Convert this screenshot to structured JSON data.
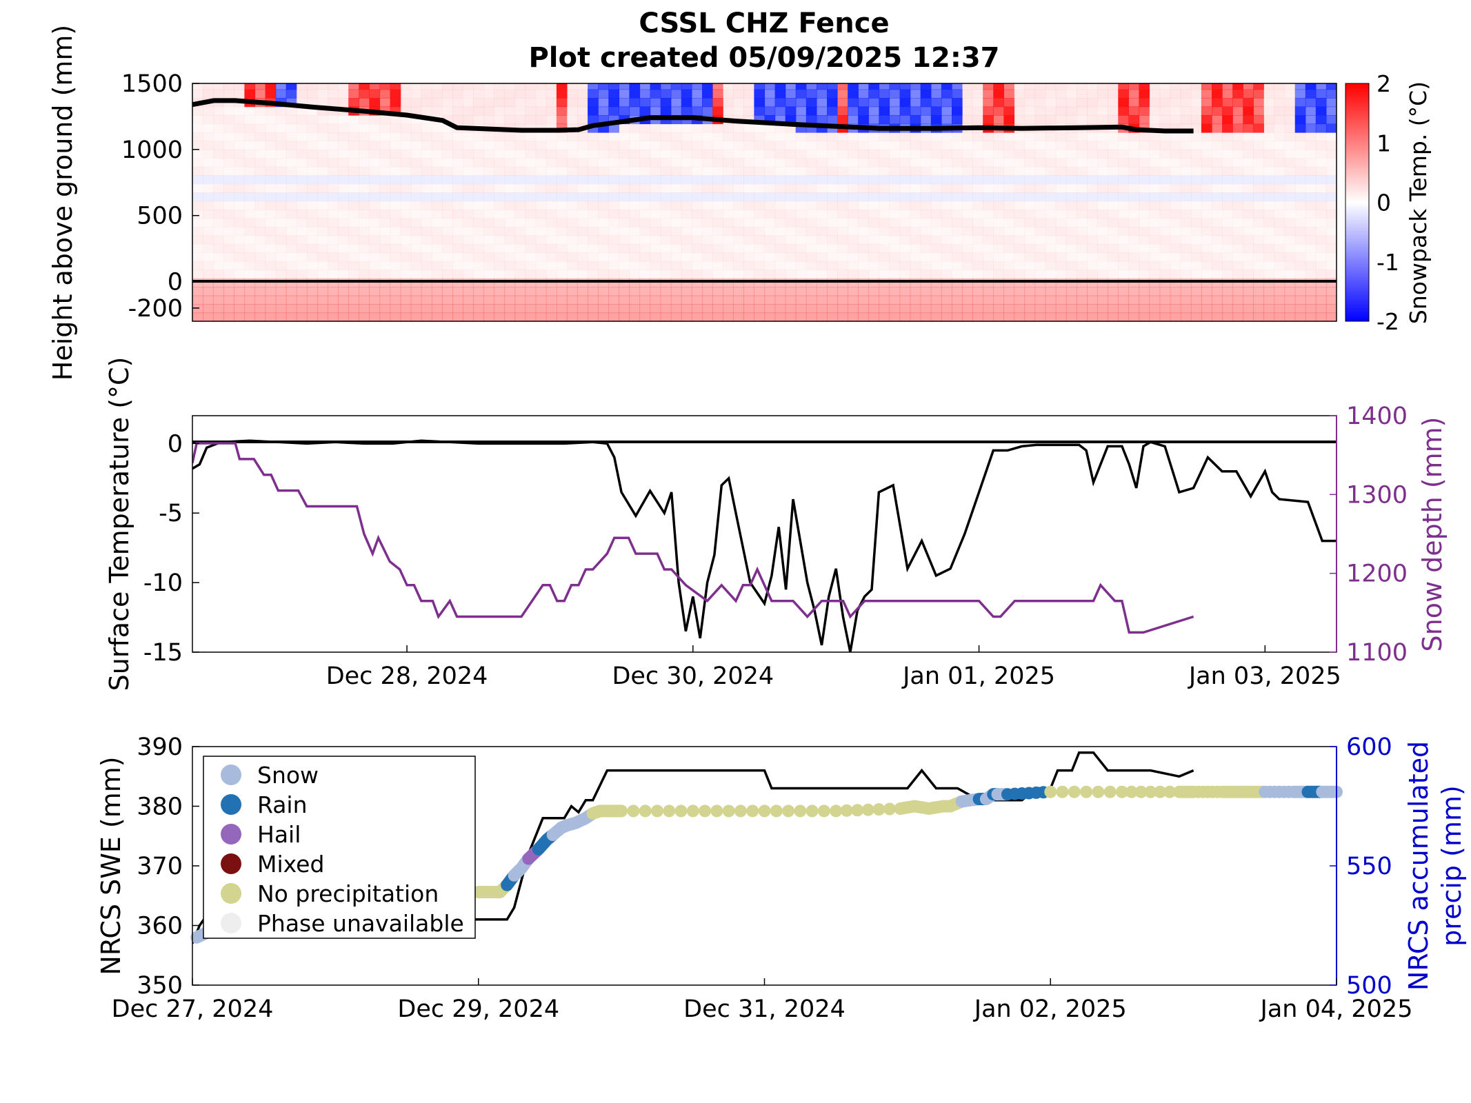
{
  "figure": {
    "title": "CSSL CHZ Fence",
    "subtitle": "Plot created 05/09/2025 12:37"
  },
  "chart_data": [
    {
      "type": "heatmap",
      "name": "snowpack-temperature-profile",
      "ylabel": "Height above ground (mm)",
      "ylim": [
        -300,
        1500
      ],
      "yticks": [
        "1500",
        "1000",
        "500",
        "0",
        "-200"
      ],
      "colorbar": {
        "label": "Snowpack Temp. (°C)",
        "range": [
          -2,
          2
        ],
        "ticks": [
          "2",
          "1",
          "0",
          "-1",
          "-2"
        ],
        "colors": [
          "#0000ff",
          "#ffffff",
          "#ff0000"
        ]
      },
      "xlim": [
        "Dec 26, 2024 12:00",
        "Jan 03, 2025 12:00"
      ],
      "snow_depth_line": {
        "t": [
          0,
          0.15,
          0.3,
          0.55,
          0.85,
          1.2,
          1.5,
          1.75,
          1.85,
          2.3,
          2.55,
          2.7,
          2.8,
          3.0,
          3.2,
          3.5,
          3.8,
          4.2,
          4.5,
          4.8,
          5.2,
          5.5,
          5.8,
          6.2,
          6.5,
          6.6,
          6.8,
          7.0
        ],
        "depth_mm": [
          1340,
          1370,
          1370,
          1350,
          1320,
          1290,
          1260,
          1220,
          1165,
          1145,
          1145,
          1150,
          1180,
          1210,
          1240,
          1240,
          1215,
          1190,
          1175,
          1160,
          1160,
          1165,
          1160,
          1165,
          1170,
          1150,
          1140,
          1140
        ]
      }
    },
    {
      "type": "line",
      "name": "surface-temperature-and-snow-depth",
      "ylabel": "Surface Temperature (°C)",
      "y2label": "Snow depth (mm)",
      "ylim": [
        -15,
        2
      ],
      "yticks": [
        "0",
        "-5",
        "-10",
        "-15"
      ],
      "y2lim": [
        1100,
        1400
      ],
      "y2ticks": [
        "1400",
        "1300",
        "1200",
        "1100"
      ],
      "xticks": [
        "Dec 28, 2024",
        "Dec 30, 2024",
        "Jan 01, 2025",
        "Jan 03, 2025"
      ],
      "colors": {
        "temperature": "#000000",
        "snow_depth": "#7e2f8e",
        "y2axis": "#7e2f8e"
      },
      "series": [
        {
          "name": "Surface Temperature",
          "t": [
            0,
            0.05,
            0.1,
            0.2,
            0.4,
            0.6,
            0.8,
            1.0,
            1.2,
            1.4,
            1.6,
            1.8,
            2.0,
            2.2,
            2.4,
            2.6,
            2.8,
            2.9,
            2.95,
            3.0,
            3.1,
            3.2,
            3.3,
            3.35,
            3.4,
            3.45,
            3.5,
            3.55,
            3.6,
            3.65,
            3.7,
            3.75,
            3.8,
            3.9,
            4.0,
            4.05,
            4.1,
            4.15,
            4.2,
            4.3,
            4.35,
            4.4,
            4.45,
            4.5,
            4.55,
            4.6,
            4.65,
            4.7,
            4.75,
            4.8,
            4.9,
            5.0,
            5.1,
            5.2,
            5.3,
            5.4,
            5.5,
            5.6,
            5.7,
            5.8,
            5.9,
            6.0,
            6.1,
            6.2,
            6.25,
            6.3,
            6.4,
            6.5,
            6.55,
            6.6,
            6.65,
            6.7,
            6.8,
            6.9,
            7.0,
            7.1,
            7.2,
            7.3,
            7.4,
            7.5,
            7.55,
            7.6,
            7.7,
            7.8,
            7.9,
            8.0
          ],
          "temp_c": [
            -1.8,
            -1.5,
            -0.3,
            0.1,
            0.2,
            0.1,
            0.0,
            0.1,
            0.0,
            0.0,
            0.2,
            0.1,
            0.0,
            0.0,
            0.0,
            0.0,
            0.1,
            0.0,
            -1.0,
            -3.5,
            -5.2,
            -3.4,
            -5.0,
            -3.5,
            -10.0,
            -13.5,
            -11.0,
            -14.0,
            -10.0,
            -8.0,
            -3.0,
            -2.5,
            -5.0,
            -10.0,
            -11.5,
            -9.5,
            -6.0,
            -10.5,
            -4.0,
            -10.0,
            -12.0,
            -14.5,
            -11.0,
            -9.0,
            -12.5,
            -15.0,
            -12.0,
            -11.0,
            -10.5,
            -3.5,
            -3.0,
            -9.0,
            -7.0,
            -9.5,
            -9.0,
            -6.5,
            -3.5,
            -0.5,
            -0.5,
            -0.2,
            -0.1,
            -0.1,
            -0.1,
            -0.1,
            -0.5,
            -2.8,
            -0.2,
            -0.2,
            -1.5,
            -3.2,
            -0.2,
            0.1,
            -0.2,
            -3.5,
            -3.2,
            -1.0,
            -2.0,
            -2.0,
            -3.8,
            -2.0,
            -3.5,
            -4.0,
            -4.1,
            -4.2,
            -7.0,
            -7.0
          ]
        },
        {
          "name": "Snow depth",
          "t": [
            0,
            0.03,
            0.2,
            0.3,
            0.33,
            0.43,
            0.5,
            0.55,
            0.6,
            0.74,
            0.8,
            1.15,
            1.2,
            1.26,
            1.3,
            1.38,
            1.45,
            1.5,
            1.55,
            1.6,
            1.68,
            1.72,
            1.8,
            1.85,
            1.9,
            2.05,
            2.1,
            2.3,
            2.45,
            2.5,
            2.55,
            2.6,
            2.65,
            2.7,
            2.75,
            2.8,
            2.9,
            2.95,
            3.0,
            3.05,
            3.1,
            3.15,
            3.2,
            3.25,
            3.3,
            3.35,
            3.45,
            3.6,
            3.7,
            3.8,
            3.85,
            3.9,
            3.95,
            4.05,
            4.1,
            4.2,
            4.3,
            4.4,
            4.55,
            4.6,
            4.7,
            4.75,
            4.8,
            4.85,
            5.4,
            5.5,
            5.6,
            5.65,
            5.75,
            5.95,
            6.0,
            6.1,
            6.3,
            6.35,
            6.45,
            6.5,
            6.55,
            6.65,
            7.0
          ],
          "depth_mm": [
            1340,
            1365,
            1365,
            1365,
            1345,
            1345,
            1325,
            1325,
            1305,
            1305,
            1285,
            1285,
            1250,
            1225,
            1245,
            1215,
            1205,
            1185,
            1185,
            1165,
            1165,
            1145,
            1165,
            1145,
            1145,
            1145,
            1145,
            1145,
            1185,
            1185,
            1165,
            1165,
            1185,
            1185,
            1205,
            1205,
            1225,
            1245,
            1245,
            1245,
            1225,
            1225,
            1225,
            1225,
            1205,
            1205,
            1185,
            1165,
            1185,
            1165,
            1185,
            1185,
            1205,
            1165,
            1165,
            1165,
            1145,
            1165,
            1165,
            1145,
            1165,
            1165,
            1165,
            1165,
            1165,
            1165,
            1145,
            1145,
            1165,
            1165,
            1165,
            1165,
            1165,
            1185,
            1165,
            1165,
            1125,
            1125,
            1145
          ],
          "axis": "right"
        }
      ]
    },
    {
      "type": "scatter",
      "name": "nrcs-swe-and-precip",
      "ylabel": "NRCS SWE (mm)",
      "y2label": [
        "NRCS accumulated",
        "precip (mm)"
      ],
      "ylim": [
        350,
        390
      ],
      "yticks": [
        "390",
        "380",
        "370",
        "360",
        "350"
      ],
      "y2lim": [
        500,
        600
      ],
      "y2ticks": [
        "600",
        "550",
        "500"
      ],
      "xticks": [
        "Dec 27, 2024",
        "Dec 29, 2024",
        "Dec 31, 2024",
        "Jan 02, 2025",
        "Jan 04, 2025"
      ],
      "colors": {
        "swe": "#000000",
        "y2axis": "#0000cc"
      },
      "legend": {
        "placement": "top-left",
        "entries": [
          {
            "label": "Snow",
            "color": "#a8bbdd"
          },
          {
            "label": "Rain",
            "color": "#2271b2"
          },
          {
            "label": "Hail",
            "color": "#9467bd"
          },
          {
            "label": "Mixed",
            "color": "#7a1010"
          },
          {
            "label": "No precipitation",
            "color": "#d2d490"
          },
          {
            "label": "Phase unavailable",
            "color": "#eeeeee"
          }
        ]
      },
      "swe_line": {
        "t": [
          0,
          0.05,
          0.08,
          0.5,
          0.6,
          1.0,
          1.5,
          2.0,
          2.2,
          2.25,
          2.35,
          2.45,
          2.5,
          2.6,
          2.65,
          2.7,
          2.75,
          2.8,
          2.9,
          2.95,
          3.0,
          3.5,
          4.0,
          4.05,
          4.5,
          4.9,
          5.0,
          5.1,
          5.2,
          5.3,
          5.35,
          5.5,
          5.6,
          5.65,
          5.8,
          5.9,
          6.0,
          6.05,
          6.15,
          6.2,
          6.3,
          6.4,
          6.5,
          6.7,
          6.9,
          7.0
        ],
        "swe_mm": [
          357,
          360,
          361,
          361,
          361,
          361,
          361,
          361,
          361,
          363,
          372,
          378,
          378,
          378,
          380,
          379,
          381,
          381,
          386,
          386,
          386,
          386,
          386,
          383,
          383,
          383,
          383,
          386,
          383,
          383,
          383,
          381,
          381,
          381,
          381,
          383,
          383,
          386,
          386,
          389,
          389,
          386,
          386,
          386,
          385,
          386
        ]
      },
      "precip_points": {
        "t": [
          0.03,
          0.1,
          0.13,
          2.0,
          2.05,
          2.1,
          2.15,
          2.2,
          2.25,
          2.3,
          2.35,
          2.42,
          2.48,
          2.52,
          2.58,
          2.62,
          2.68,
          2.75,
          2.8,
          2.85,
          2.9,
          2.95,
          3.0,
          3.5,
          4.0,
          4.5,
          4.95,
          5.05,
          5.15,
          5.25,
          5.3,
          5.38,
          5.5,
          5.55,
          5.6,
          5.63,
          5.7,
          6.0,
          6.5,
          6.9,
          7.0,
          7.2,
          7.3,
          7.4,
          7.5,
          7.7,
          7.8,
          7.9,
          8.0
        ],
        "precip_mm": [
          520,
          522,
          523,
          539,
          539,
          539,
          539,
          542,
          546,
          549,
          553,
          557,
          561,
          563,
          566,
          567,
          568,
          570,
          572,
          573,
          573,
          573,
          573,
          573,
          573,
          573,
          574,
          575,
          574,
          575,
          575,
          577,
          578,
          578,
          580,
          580,
          580,
          581,
          581,
          581,
          581,
          581,
          581,
          581,
          581,
          581,
          581,
          581,
          581
        ],
        "phase": [
          "Snow",
          "Snow",
          "Snow",
          "No precipitation",
          "No precipitation",
          "No precipitation",
          "No precipitation",
          "Rain",
          "Snow",
          "Snow",
          "Hail",
          "Rain",
          "Rain",
          "Snow",
          "Snow",
          "Snow",
          "Snow",
          "Snow",
          "No precipitation",
          "No precipitation",
          "No precipitation",
          "No precipitation",
          "No precipitation",
          "No precipitation",
          "No precipitation",
          "No precipitation",
          "No precipitation",
          "No precipitation",
          "No precipitation",
          "No precipitation",
          "No precipitation",
          "Snow",
          "Rain",
          "Snow",
          "Rain",
          "Snow",
          "Rain",
          "No precipitation",
          "No precipitation",
          "No precipitation",
          "No precipitation",
          "No precipitation",
          "No precipitation",
          "No precipitation",
          "Snow",
          "Snow",
          "Rain",
          "Snow",
          "Snow"
        ]
      }
    }
  ]
}
